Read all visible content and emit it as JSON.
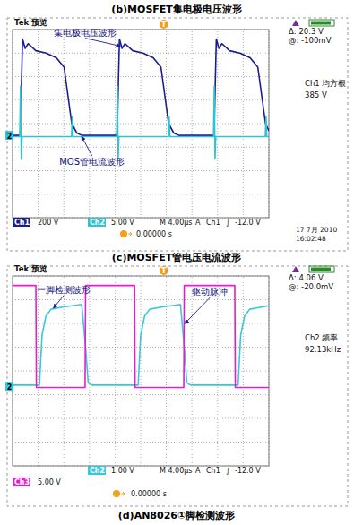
{
  "captions": [
    "(b)MOSFET集电极电压波形",
    "(c)MOSFET管电压电流波形",
    "(d)AN8026①脚检测波形"
  ],
  "chart_data": [
    {
      "type": "line",
      "xlim": [
        0,
        10
      ],
      "ylim": [
        -4,
        4
      ],
      "xticks": [
        0,
        1,
        2,
        3,
        4,
        5,
        6,
        7,
        8,
        9,
        10
      ],
      "yticks": [
        -4,
        -3,
        -2,
        -1,
        0,
        1,
        2,
        3,
        4
      ],
      "grid": true,
      "tick_labels": false,
      "header": "Tek 预览",
      "cursor_readout": [
        "Δ: 20.3 V",
        "@: -100mV"
      ],
      "measurement": [
        "Ch1 均方根",
        "385 V"
      ],
      "footer": [
        "Ch1",
        "200 V",
        "Ch2",
        "5.00 V",
        "M 4.00µs",
        "A",
        "Ch1",
        "∫",
        "-12.0 V"
      ],
      "date": [
        "17 7月 2010",
        "16:02:48"
      ],
      "time_offset": "0.00000 s",
      "trigger": {
        "label": "T",
        "x": 5.9
      },
      "ground_marker": {
        "label": "2",
        "y": -0.5
      },
      "series": [
        {
          "color": "#1c1c8c",
          "x": [
            0,
            0.3,
            0.39,
            0.49,
            0.61,
            0.91,
            1.31,
            1.71,
            2.01,
            2.16,
            2.31,
            2.51,
            2.71,
            4.08,
            4.17,
            4.27,
            4.39,
            4.69,
            5.09,
            5.49,
            5.79,
            5.94,
            6.09,
            6.29,
            6.49,
            7.86,
            7.95,
            8.05,
            8.17,
            8.47,
            8.87,
            9.27,
            9.57,
            9.72,
            9.87,
            10
          ],
          "values": [
            -0.5,
            -0.5,
            3.6,
            3.2,
            3.4,
            3.1,
            3.0,
            2.8,
            2.4,
            1.2,
            0.0,
            -0.4,
            -0.5,
            -0.5,
            3.6,
            3.2,
            3.4,
            3.1,
            3.0,
            2.8,
            2.4,
            1.2,
            0.0,
            -0.4,
            -0.5,
            -0.5,
            3.6,
            3.2,
            3.4,
            3.1,
            3.0,
            2.8,
            2.4,
            1.2,
            0.0,
            -0.3
          ]
        },
        {
          "color": "#2ec4d6",
          "x": [
            0,
            0.28,
            0.31,
            0.34,
            0.37,
            2.3,
            2.33,
            2.36,
            4.06,
            4.09,
            4.12,
            4.15,
            6.08,
            6.11,
            6.14,
            7.84,
            7.87,
            7.9,
            7.93,
            9.86,
            9.89,
            9.92,
            10
          ],
          "values": [
            -0.55,
            -0.55,
            1.6,
            -1.5,
            -0.55,
            -0.55,
            0.3,
            -0.55,
            -0.55,
            1.6,
            -1.5,
            -0.55,
            -0.55,
            0.3,
            -0.55,
            -0.55,
            1.6,
            -1.5,
            -0.55,
            -0.55,
            0.3,
            -0.55,
            -0.55
          ]
        }
      ],
      "annotations": [
        {
          "text": "集电极电压波形",
          "xy": [
            4.2,
            3.3
          ],
          "xytext": [
            2.83,
            3.75
          ]
        },
        {
          "text": "MOS管电流波形",
          "xy": [
            2.7,
            -0.55
          ],
          "xytext": [
            3.1,
            -1.75
          ]
        }
      ]
    },
    {
      "type": "line",
      "xlim": [
        0,
        10
      ],
      "ylim": [
        -4,
        4
      ],
      "xticks": [
        0,
        1,
        2,
        3,
        4,
        5,
        6,
        7,
        8,
        9,
        10
      ],
      "yticks": [
        -4,
        -3,
        -2,
        -1,
        0,
        1,
        2,
        3,
        4
      ],
      "grid": true,
      "tick_labels": false,
      "header": "Tek 预览",
      "cursor_readout": [
        "Δ: 4.06 V",
        "@: -20.0mV"
      ],
      "measurement": [
        "Ch2 频率",
        "92.13kHz"
      ],
      "footer": [
        "Ch2",
        "1.00 V",
        "M 4.00µs",
        "A",
        "Ch1",
        "∫",
        "-12.0 V"
      ],
      "footer_line2": [
        "Ch3",
        "5.00 V"
      ],
      "time_offset": "0.00000 s",
      "trigger": {
        "label": "T",
        "x": 5.9
      },
      "ground_marker": {
        "label": "2",
        "y": -0.65
      },
      "series": [
        {
          "color": "#38c8da",
          "x": [
            0,
            1.05,
            1.15,
            1.3,
            1.5,
            2.0,
            2.7,
            2.85,
            2.95,
            3.1,
            4.9,
            5.0,
            5.15,
            5.35,
            5.85,
            6.55,
            6.7,
            6.8,
            6.95,
            8.8,
            8.9,
            9.05,
            9.25,
            9.75,
            10
          ],
          "values": [
            -0.6,
            -0.6,
            1.5,
            2.3,
            2.6,
            2.7,
            2.8,
            1.0,
            -0.5,
            -0.6,
            -0.6,
            1.5,
            2.3,
            2.6,
            2.7,
            2.8,
            1.0,
            -0.5,
            -0.6,
            -0.6,
            1.5,
            2.3,
            2.6,
            2.7,
            2.75
          ]
        },
        {
          "color": "#e020c8",
          "x": [
            0,
            0.91,
            0.93,
            2.83,
            2.85,
            4.76,
            4.78,
            6.68,
            6.7,
            8.67,
            8.69,
            10
          ],
          "values": [
            3.6,
            3.6,
            -0.7,
            -0.7,
            3.6,
            3.6,
            -0.7,
            -0.7,
            3.6,
            3.6,
            -0.7,
            -0.7
          ]
        }
      ],
      "annotations": [
        {
          "text": "一脚检测波形",
          "xy": [
            1.6,
            2.65
          ],
          "xytext": [
            2.0,
            3.3
          ]
        },
        {
          "text": "驱动脉冲",
          "xy": [
            6.72,
            2.0
          ],
          "xytext": [
            7.7,
            3.2
          ]
        }
      ]
    }
  ]
}
